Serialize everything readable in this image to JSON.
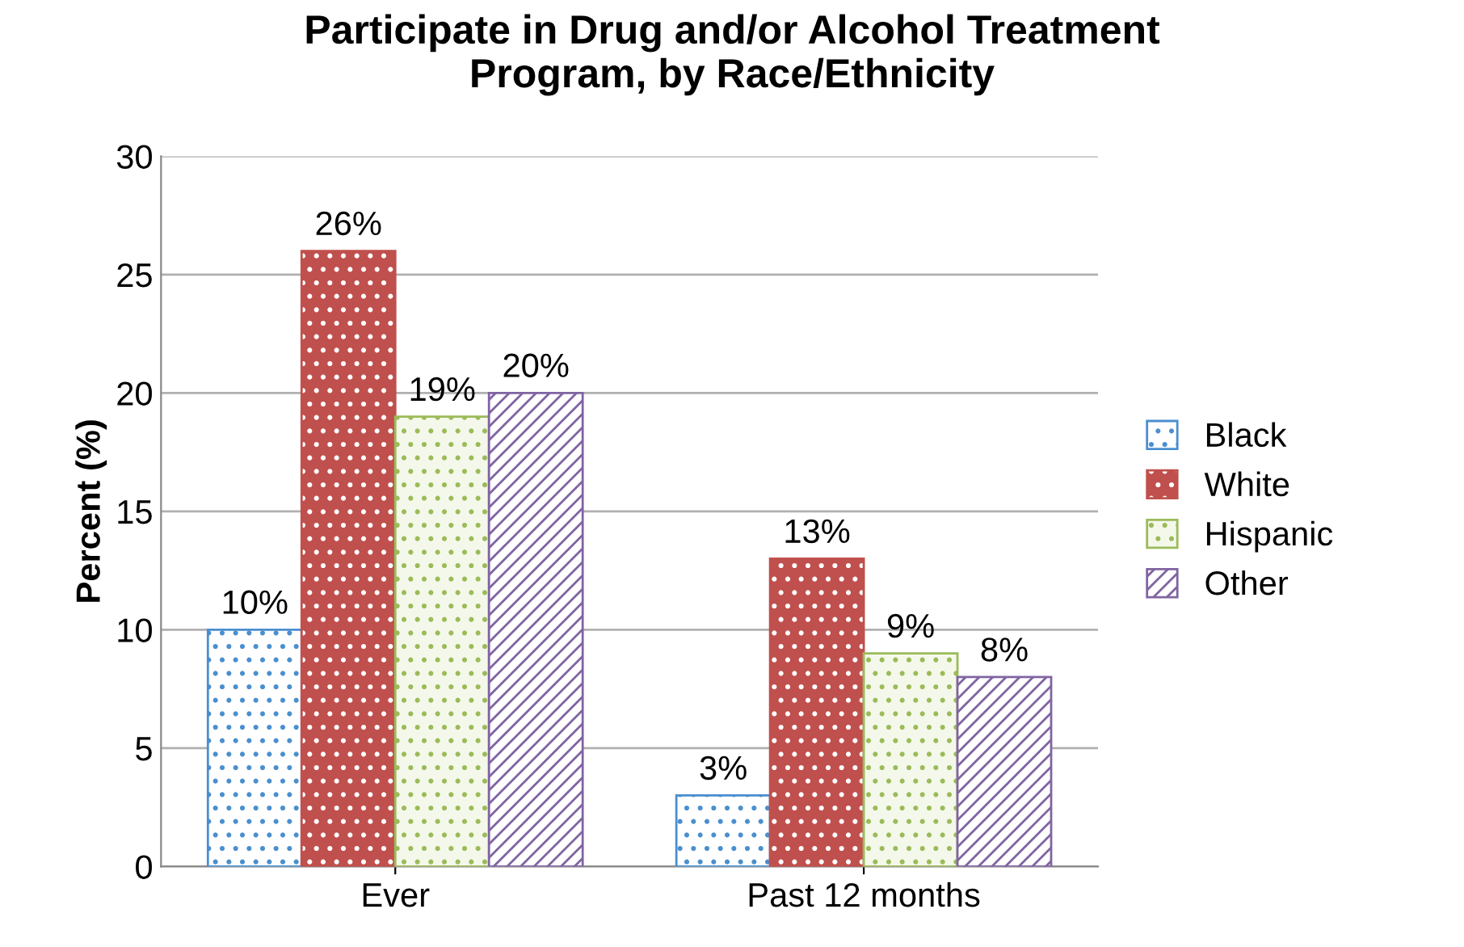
{
  "chart_data": {
    "type": "bar",
    "title": "Participate in Drug and/or Alcohol Treatment\nProgram, by Race/Ethnicity",
    "ylabel": "Percent (%)",
    "categories": [
      "Ever",
      "Past 12 months"
    ],
    "series": [
      {
        "name": "Black",
        "color": "#4a8fcf",
        "values": [
          10,
          3
        ],
        "value_labels": [
          "10%",
          "3%"
        ]
      },
      {
        "name": "White",
        "color": "#c0504d",
        "values": [
          26,
          13
        ],
        "value_labels": [
          "26%",
          "13%"
        ]
      },
      {
        "name": "Hispanic",
        "color": "#9bbb59",
        "values": [
          19,
          9
        ],
        "value_labels": [
          "19%",
          "9%"
        ]
      },
      {
        "name": "Other",
        "color": "#8064a2",
        "values": [
          20,
          8
        ],
        "value_labels": [
          "20%",
          "8%"
        ]
      }
    ],
    "ylim": [
      0,
      30
    ],
    "yticks": [
      0,
      5,
      10,
      15,
      20,
      25,
      30
    ],
    "grid": "y",
    "legend": "right"
  }
}
